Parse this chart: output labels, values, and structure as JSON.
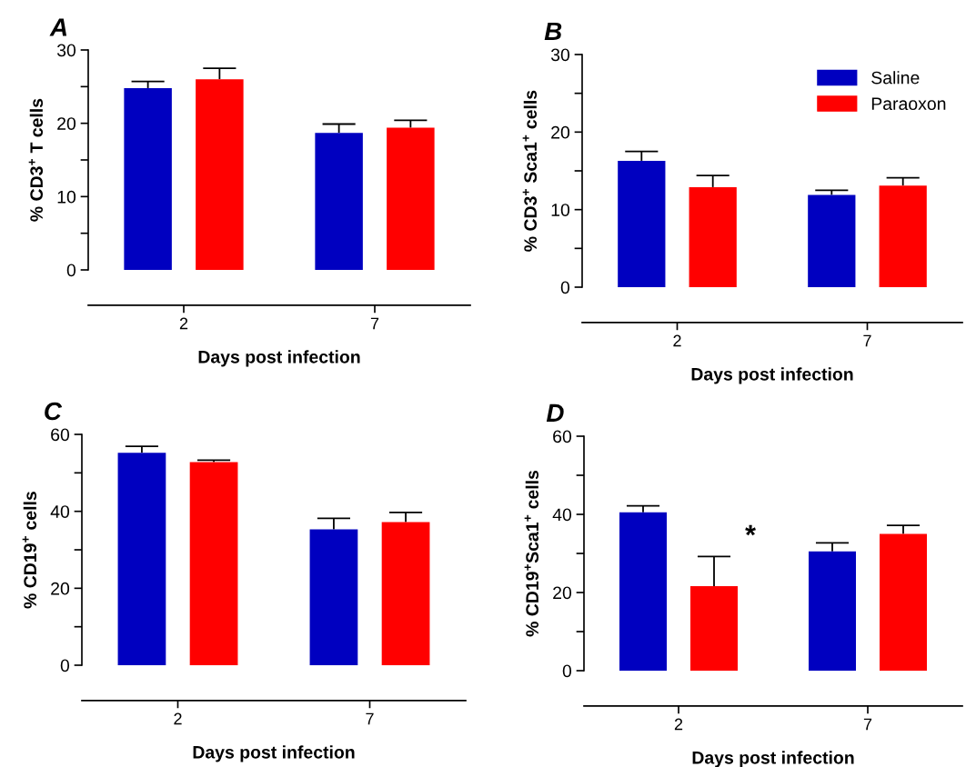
{
  "chart_data": [
    {
      "type": "bar",
      "title": "A",
      "ylabel": "% CD3$^{+}$ T cells",
      "xlabel": "Days post infection",
      "categories": [
        "2",
        "7"
      ],
      "ylim": [
        0,
        30
      ],
      "yticks": [
        0,
        {
          "value": 5,
          "label": null
        },
        10,
        {
          "value": 15,
          "label": null
        },
        20,
        {
          "value": 25,
          "label": null
        },
        30
      ],
      "grid": false,
      "legend": false,
      "series": [
        {
          "color": "#0000c0",
          "values": [
            24.8,
            18.7
          ],
          "errors": [
            [
              24.8,
              25.7
            ],
            [
              18.7,
              19.9
            ]
          ]
        },
        {
          "color": "#ff0000",
          "values": [
            26.0,
            19.4
          ],
          "errors": [
            [
              26.0,
              27.5
            ],
            [
              19.4,
              20.4
            ]
          ]
        }
      ]
    },
    {
      "type": "bar",
      "title": "B",
      "ylabel": "% CD3$^{+}$ Sca1$^{+}$ cells",
      "xlabel": "Days post infection",
      "categories": [
        "2",
        "7"
      ],
      "ylim": [
        0,
        30
      ],
      "yticks": [
        0,
        {
          "value": 5,
          "label": null
        },
        10,
        {
          "value": 15,
          "label": null
        },
        20,
        {
          "value": 25,
          "label": null
        },
        30
      ],
      "grid": false,
      "legend": "top right",
      "series": [
        {
          "name": "Saline",
          "color": "#0000c0",
          "values": [
            16.3,
            11.9
          ],
          "errors": [
            [
              16.3,
              17.5
            ],
            [
              11.9,
              12.5
            ]
          ]
        },
        {
          "name": "Paraoxon",
          "color": "#ff0000",
          "values": [
            12.9,
            13.1
          ],
          "errors": [
            [
              12.9,
              14.4
            ],
            [
              13.1,
              14.1
            ]
          ]
        }
      ]
    },
    {
      "type": "bar",
      "title": "C",
      "ylabel": "% CD19$^{+}$ cells",
      "xlabel": "Days post infection",
      "categories": [
        "2",
        "7"
      ],
      "ylim": [
        0,
        60
      ],
      "yticks": [
        0,
        {
          "value": 10,
          "label": null
        },
        20,
        {
          "value": 30,
          "label": null
        },
        40,
        {
          "value": 50,
          "label": null
        },
        60
      ],
      "grid": false,
      "legend": false,
      "series": [
        {
          "color": "#0000c0",
          "values": [
            55.2,
            35.3
          ],
          "errors": [
            [
              55.2,
              56.9
            ],
            [
              35.3,
              38.2
            ]
          ]
        },
        {
          "color": "#ff0000",
          "values": [
            52.8,
            37.2
          ],
          "errors": [
            [
              52.8,
              53.3
            ],
            [
              37.2,
              39.7
            ]
          ]
        }
      ]
    },
    {
      "type": "bar",
      "title": "D",
      "ylabel": "% CD19$^{+}$Sca1$^{+}$ cells",
      "xlabel": "Days post infection",
      "categories": [
        "2",
        "7"
      ],
      "ylim": [
        0,
        60
      ],
      "yticks": [
        0,
        {
          "value": 10,
          "label": null
        },
        20,
        {
          "value": 30,
          "label": null
        },
        40,
        {
          "value": 50,
          "label": null
        },
        60
      ],
      "grid": false,
      "legend": false,
      "annotations": [
        "*"
      ],
      "series": [
        {
          "color": "#0000c0",
          "values": [
            40.5,
            30.5
          ],
          "errors": [
            [
              40.5,
              42.2
            ],
            [
              30.5,
              32.7
            ]
          ]
        },
        {
          "color": "#ff0000",
          "values": [
            21.6,
            35.0
          ],
          "errors": [
            [
              21.6,
              29.2
            ],
            [
              35.0,
              37.2
            ]
          ]
        }
      ]
    }
  ]
}
